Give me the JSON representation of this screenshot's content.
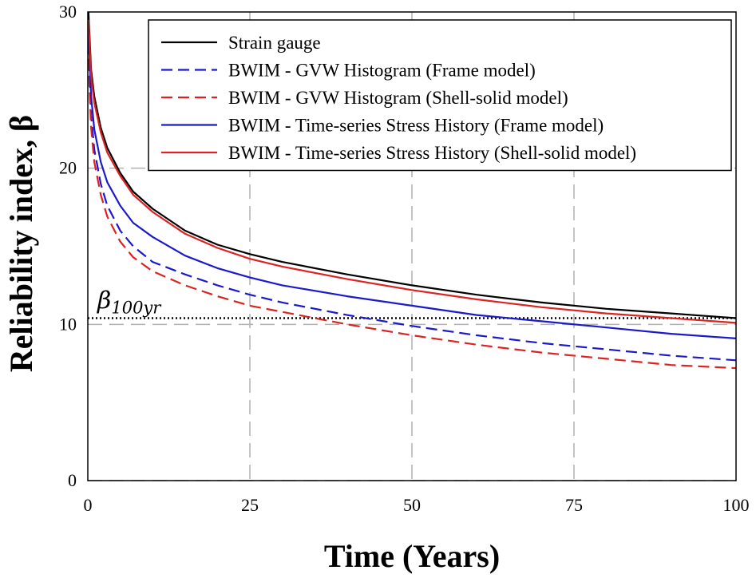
{
  "chart_data": {
    "type": "line",
    "xlabel": "Time (Years)",
    "ylabel": "Reliability index, β",
    "xlim": [
      0,
      100
    ],
    "ylim": [
      0,
      30
    ],
    "xticks": [
      0,
      25,
      50,
      75,
      100
    ],
    "yticks": [
      0,
      10,
      20,
      30
    ],
    "grid": true,
    "legend_position": "top-right",
    "x": [
      0.1,
      0.5,
      1,
      2,
      3,
      5,
      7,
      10,
      15,
      20,
      25,
      30,
      40,
      50,
      60,
      70,
      80,
      90,
      100
    ],
    "series": [
      {
        "name": "Strain gauge",
        "color": "#000000",
        "dash": "solid",
        "values": [
          30.0,
          26.3,
          24.6,
          22.6,
          21.3,
          19.7,
          18.5,
          17.4,
          16.0,
          15.1,
          14.5,
          14.0,
          13.2,
          12.5,
          11.9,
          11.4,
          11.0,
          10.7,
          10.4
        ]
      },
      {
        "name": "BWIM - GVW Histogram (Frame model)",
        "color": "#1a1acc",
        "dash": "dashed",
        "values": [
          28.0,
          23.4,
          21.2,
          19.0,
          17.6,
          16.0,
          15.0,
          14.0,
          13.2,
          12.5,
          11.9,
          11.4,
          10.6,
          9.9,
          9.3,
          8.8,
          8.4,
          8.0,
          7.7
        ]
      },
      {
        "name": "BWIM - GVW Histogram (Shell-solid model)",
        "color": "#dd2222",
        "dash": "dashed",
        "values": [
          27.0,
          22.6,
          20.4,
          18.3,
          16.9,
          15.3,
          14.3,
          13.4,
          12.5,
          11.8,
          11.2,
          10.8,
          10.0,
          9.3,
          8.7,
          8.2,
          7.8,
          7.4,
          7.2
        ]
      },
      {
        "name": "BWIM - Time-series Stress History  (Frame model)",
        "color": "#1a1acc",
        "dash": "solid",
        "values": [
          29.0,
          24.6,
          22.5,
          20.4,
          19.1,
          17.6,
          16.5,
          15.6,
          14.4,
          13.6,
          13.0,
          12.5,
          11.8,
          11.2,
          10.6,
          10.2,
          9.8,
          9.4,
          9.1
        ]
      },
      {
        "name": "BWIM - Time-series Stress History (Shell-solid model)",
        "color": "#dd2222",
        "dash": "solid",
        "values": [
          29.5,
          25.9,
          24.2,
          22.3,
          21.0,
          19.5,
          18.3,
          17.2,
          15.8,
          14.9,
          14.2,
          13.7,
          12.9,
          12.2,
          11.6,
          11.1,
          10.7,
          10.4,
          10.1
        ]
      }
    ],
    "reference_line": {
      "label_base": "β",
      "label_sub": "100yr",
      "y": 10.4,
      "style": "dotted",
      "color": "#000000"
    }
  }
}
